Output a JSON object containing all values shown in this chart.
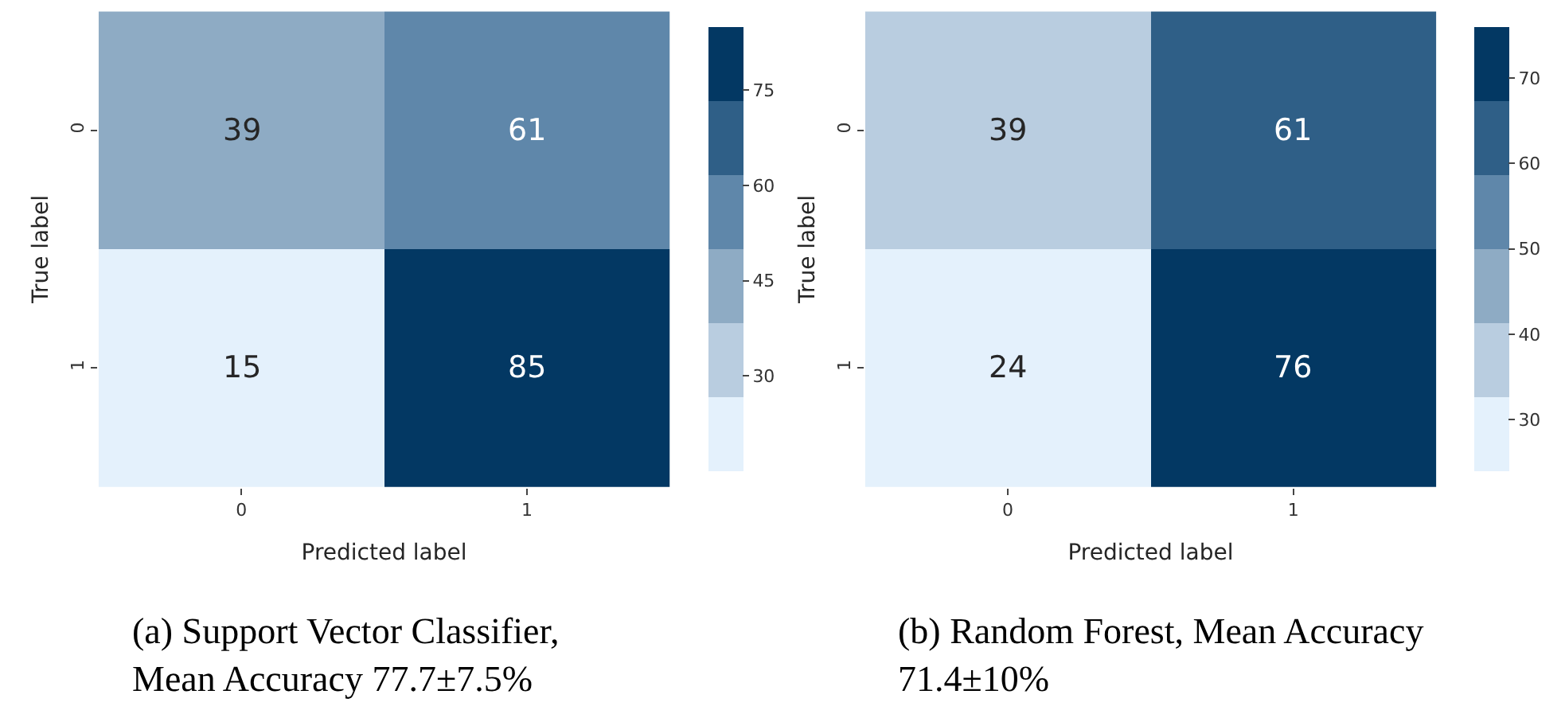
{
  "chart_data": [
    {
      "type": "heatmap",
      "xlabel": "Predicted label",
      "ylabel": "True label",
      "categories": [
        "0",
        "1"
      ],
      "y_categories": [
        "0",
        "1"
      ],
      "cells": [
        [
          39,
          61
        ],
        [
          15,
          85
        ]
      ],
      "data_labels": true,
      "clim": [
        15,
        85
      ],
      "cticks": [
        30,
        45,
        60,
        75
      ],
      "colors": [
        "#e4f1fc",
        "#b9cde0",
        "#8eabc4",
        "#5f87aa",
        "#2f5f87",
        "#033863"
      ],
      "annotations": [
        "(a) Support Vector Classifier, Mean Accuracy 77.7±7.5%"
      ]
    },
    {
      "type": "heatmap",
      "xlabel": "Predicted label",
      "ylabel": "True label",
      "categories": [
        "0",
        "1"
      ],
      "y_categories": [
        "0",
        "1"
      ],
      "cells": [
        [
          39,
          61
        ],
        [
          24,
          76
        ]
      ],
      "data_labels": true,
      "clim": [
        24,
        76
      ],
      "cticks": [
        30,
        40,
        50,
        60,
        70
      ],
      "colors": [
        "#e4f1fc",
        "#b9cde0",
        "#8eabc4",
        "#5f87aa",
        "#2f5f87",
        "#033863"
      ],
      "annotations": [
        "(b) Random Forest, Mean Accuracy 71.4±10%"
      ]
    }
  ]
}
